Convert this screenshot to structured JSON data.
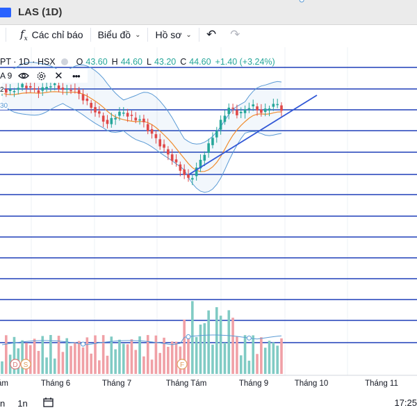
{
  "window": {
    "title": "LAS (1D)"
  },
  "toolbar": {
    "indicators_label": "Các chỉ báo",
    "chart_label": "Biểu đồ",
    "profile_label": "Hồ sơ"
  },
  "legend": {
    "symbol": "PT · 1D · HSX",
    "o_label": "O",
    "o_value": "43.60",
    "h_label": "H",
    "h_value": "44.60",
    "l_label": "L",
    "l_value": "43.20",
    "c_label": "C",
    "c_value": "44.60",
    "change": "+1.40 (+3.24%)"
  },
  "indicator": {
    "label": "A 9"
  },
  "price_labels": [
    "2",
    "30"
  ],
  "time_axis": [
    "ám",
    "Tháng 6",
    "Tháng 7",
    "Tháng Tám",
    "Tháng 9",
    "Tháng 10",
    "Tháng 11"
  ],
  "bottom": {
    "range_left": "n",
    "range_1m": "1n",
    "clock": "17:25"
  },
  "markers": {
    "d": "D",
    "s": "S",
    "f": "F"
  },
  "colors": {
    "up": "#26a69a",
    "up_vol": "#80cbc4",
    "down": "#e04848",
    "down_vol": "#f0a0a6",
    "bb": "#5b9bd5",
    "ma": "#f08c2e",
    "hline": "#1f3fb8",
    "trend": "#3157d6"
  },
  "chart_data": {
    "type": "candlestick",
    "ohlc_last": {
      "open": 43.6,
      "high": 44.6,
      "low": 43.2,
      "close": 44.6
    },
    "change": 1.4,
    "change_pct": 3.24,
    "x_ticks": [
      "ám",
      "Tháng 6",
      "Tháng 7",
      "Tháng Tám",
      "Tháng 9",
      "Tháng 10",
      "Tháng 11"
    ],
    "indicators": [
      "Bollinger Bands",
      "MA 9",
      "Volume"
    ]
  }
}
